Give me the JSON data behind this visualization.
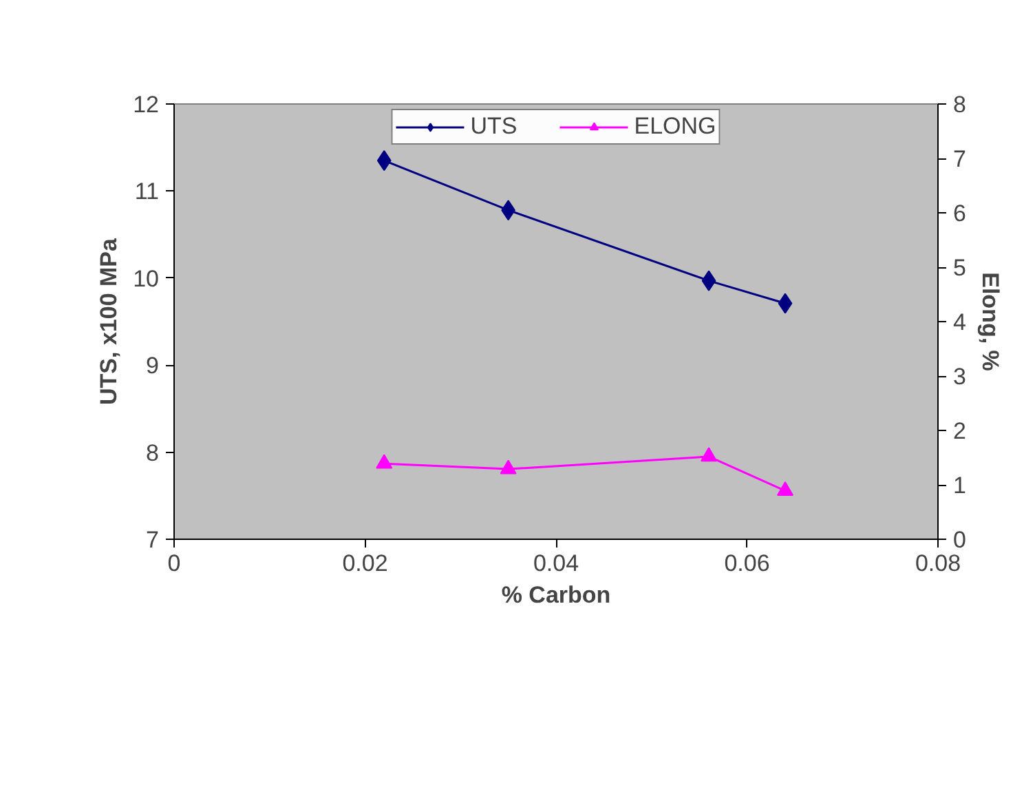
{
  "chart_data": {
    "type": "line",
    "xlabel": "% Carbon",
    "ylabel": "UTS, x100 MPa",
    "y2label": "Elong, %",
    "x": [
      0.022,
      0.035,
      0.056,
      0.064
    ],
    "series": [
      {
        "name": "UTS",
        "color": "#000080",
        "values": [
          11.35,
          10.78,
          9.97,
          9.71
        ],
        "marker": "diamond"
      },
      {
        "name": "ELONG",
        "color": "#ff00ff",
        "values": [
          1.39,
          1.29,
          1.52,
          0.89
        ],
        "marker": "triangle",
        "axis": "y2"
      }
    ],
    "xlim": [
      0,
      0.08
    ],
    "xticks": [
      0,
      0.02,
      0.04,
      0.06,
      0.08
    ],
    "ylim": [
      7,
      12
    ],
    "yticks": [
      7,
      8,
      9,
      10,
      11,
      12
    ],
    "y2lim": [
      0,
      8
    ],
    "y2ticks": [
      0,
      1,
      2,
      3,
      4,
      5,
      6,
      7,
      8
    ],
    "grid": false,
    "legend": "top",
    "line_style": "solid"
  }
}
